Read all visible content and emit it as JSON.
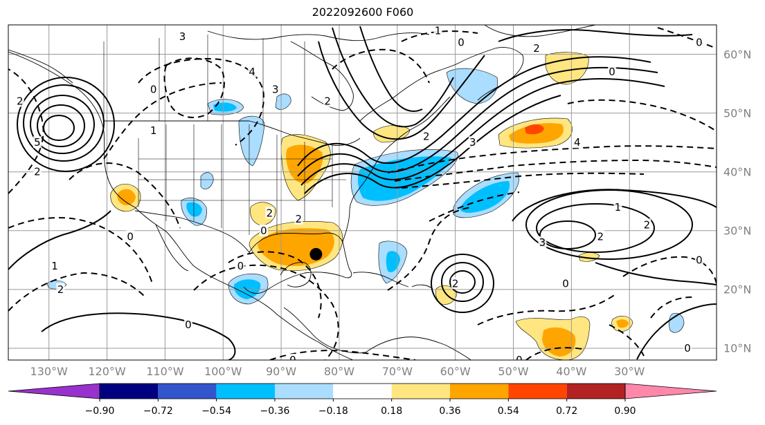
{
  "title": "2022092600 F060",
  "map": {
    "projection": "lat-lon",
    "lon_range_deg": [
      -137,
      -15
    ],
    "lat_range_deg": [
      8,
      65
    ],
    "grid": true,
    "storm_marker": {
      "lon": -84,
      "lat": 26,
      "symbol": "filled-circle"
    }
  },
  "lon_ticks": [
    {
      "lon": -130,
      "label": "130°W"
    },
    {
      "lon": -120,
      "label": "120°W"
    },
    {
      "lon": -110,
      "label": "110°W"
    },
    {
      "lon": -100,
      "label": "100°W"
    },
    {
      "lon": -90,
      "label": "90°W"
    },
    {
      "lon": -80,
      "label": "80°W"
    },
    {
      "lon": -70,
      "label": "70°W"
    },
    {
      "lon": -60,
      "label": "60°W"
    },
    {
      "lon": -50,
      "label": "50°W"
    },
    {
      "lon": -40,
      "label": "40°W"
    },
    {
      "lon": -30,
      "label": "30°W"
    }
  ],
  "lat_ticks": [
    {
      "lat": 60,
      "label": "60°N"
    },
    {
      "lat": 50,
      "label": "50°N"
    },
    {
      "lat": 40,
      "label": "40°N"
    },
    {
      "lat": 30,
      "label": "30°N"
    },
    {
      "lat": 20,
      "label": "20°N"
    },
    {
      "lat": 10,
      "label": "10°N"
    }
  ],
  "colorbar": {
    "extend": "both",
    "under_color": "#9932cc",
    "over_color": "#ff88aa",
    "bins": [
      {
        "color": "#000080"
      },
      {
        "color": "#3355cc"
      },
      {
        "color": "#00bfff"
      },
      {
        "color": "#aaddff"
      },
      {
        "color": "#ffffff"
      },
      {
        "color": "#ffe680"
      },
      {
        "color": "#ffa500"
      },
      {
        "color": "#ff4500"
      },
      {
        "color": "#b22222"
      }
    ],
    "labels": [
      "−0.90",
      "−0.72",
      "−0.54",
      "−0.36",
      "−0.18",
      "0.18",
      "0.36",
      "0.54",
      "0.72",
      "0.90"
    ]
  },
  "contour_labels": [
    {
      "text": "2",
      "lon": -135,
      "lat": 52
    },
    {
      "text": "5",
      "lon": -132,
      "lat": 45
    },
    {
      "text": "0",
      "lon": -112,
      "lat": 54
    },
    {
      "text": "1",
      "lon": -112,
      "lat": 47
    },
    {
      "text": "2",
      "lon": -132,
      "lat": 40
    },
    {
      "text": "3",
      "lon": -107,
      "lat": 63
    },
    {
      "text": "3",
      "lon": -91,
      "lat": 54
    },
    {
      "text": "4",
      "lon": -95,
      "lat": 57
    },
    {
      "text": "2",
      "lon": -92,
      "lat": 33
    },
    {
      "text": "2",
      "lon": -82,
      "lat": 52
    },
    {
      "text": "1",
      "lon": -63,
      "lat": 64
    },
    {
      "text": "0",
      "lon": -59,
      "lat": 62
    },
    {
      "text": "2",
      "lon": -46,
      "lat": 61
    },
    {
      "text": "0",
      "lon": -33,
      "lat": 57
    },
    {
      "text": "0",
      "lon": -18,
      "lat": 62
    },
    {
      "text": "2",
      "lon": -65,
      "lat": 46
    },
    {
      "text": "3",
      "lon": -57,
      "lat": 45
    },
    {
      "text": "4",
      "lon": -39,
      "lat": 45
    },
    {
      "text": "1",
      "lon": -32,
      "lat": 34
    },
    {
      "text": "2",
      "lon": -27,
      "lat": 31
    },
    {
      "text": "2",
      "lon": -35,
      "lat": 29
    },
    {
      "text": "3",
      "lon": -45,
      "lat": 28
    },
    {
      "text": "0",
      "lon": -41,
      "lat": 21
    },
    {
      "text": "0",
      "lon": -18,
      "lat": 25
    },
    {
      "text": "0",
      "lon": -20,
      "lat": 10
    },
    {
      "text": "0",
      "lon": -49,
      "lat": 8
    },
    {
      "text": "0",
      "lon": -88,
      "lat": 8
    },
    {
      "text": "0",
      "lon": -106,
      "lat": 14
    },
    {
      "text": "0",
      "lon": -97,
      "lat": 24
    },
    {
      "text": "0",
      "lon": -116,
      "lat": 29
    },
    {
      "text": "0",
      "lon": -93,
      "lat": 30
    },
    {
      "text": "2",
      "lon": -128,
      "lat": 20
    },
    {
      "text": "1",
      "lon": -129,
      "lat": 24
    },
    {
      "text": "2",
      "lon": -60,
      "lat": 21
    },
    {
      "text": "2",
      "lon": -87,
      "lat": 32
    }
  ]
}
